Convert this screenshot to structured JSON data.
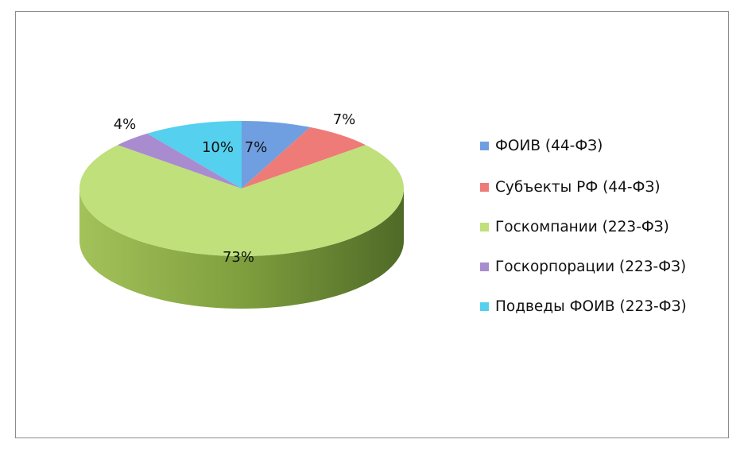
{
  "chart_data": {
    "type": "pie",
    "style": "3d",
    "title": "",
    "categories": [
      "ФОИВ (44-ФЗ)",
      "Субъекты РФ (44-ФЗ)",
      "Госкомпании (223-ФЗ)",
      "Госкорпорации (223-ФЗ)",
      "Подведы ФОИВ (223-ФЗ)"
    ],
    "values": [
      7,
      7,
      73,
      4,
      10
    ],
    "data_labels": [
      "7%",
      "7%",
      "73%",
      "4%",
      "10%"
    ],
    "colors": [
      "#6f9fe0",
      "#ee7b78",
      "#bfe07a",
      "#a98bd0",
      "#55d0ee"
    ],
    "legend_placement": "right",
    "start_angle": "12 o'clock, clockwise"
  }
}
